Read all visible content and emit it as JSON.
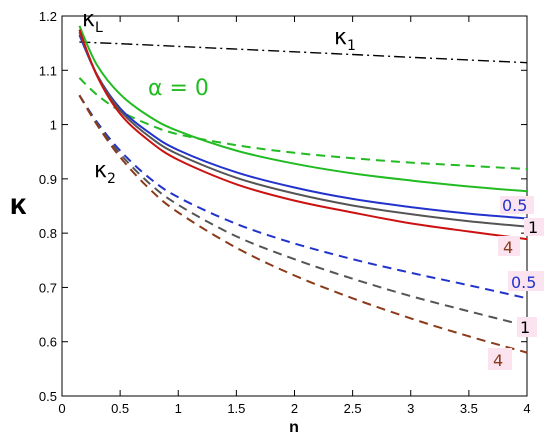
{
  "chart_data": {
    "type": "line",
    "xlabel": "n",
    "ylabel": "κ",
    "xlim": [
      0,
      4
    ],
    "ylim": [
      0.5,
      1.2
    ],
    "xticks": [
      "0",
      "0.5",
      "1",
      "1.5",
      "2",
      "2.5",
      "3",
      "3.5",
      "4"
    ],
    "yticks": [
      "0.5",
      "0.6",
      "0.7",
      "0.8",
      "0.9",
      "1",
      "1.1",
      "1.2"
    ],
    "grid": false,
    "series": [
      {
        "label": "κ1",
        "color": "#000000",
        "dash": "dashdot",
        "x": [
          0.15,
          0.5,
          1.0,
          1.5,
          2.0,
          2.5,
          3.0,
          3.5,
          4.0
        ],
        "y": [
          1.152,
          1.149,
          1.144,
          1.139,
          1.134,
          1.129,
          1.124,
          1.119,
          1.114
        ]
      },
      {
        "label": "α = 0",
        "color": "#22bb22",
        "dash": "solid",
        "x": [
          0.15,
          0.3,
          0.5,
          0.75,
          1.0,
          1.5,
          2.0,
          2.5,
          3.0,
          3.5,
          4.0
        ],
        "y": [
          1.182,
          1.11,
          1.056,
          1.015,
          0.988,
          0.952,
          0.928,
          0.91,
          0.897,
          0.886,
          0.877
        ]
      },
      {
        "label": "α = 0 (κ2)",
        "color": "#22bb22",
        "dash": "dashed",
        "x": [
          0.15,
          0.3,
          0.5,
          0.75,
          1.0,
          1.5,
          2.0,
          2.5,
          3.0,
          3.5,
          4.0
        ],
        "y": [
          1.086,
          1.055,
          1.025,
          1.0,
          0.982,
          0.962,
          0.948,
          0.938,
          0.93,
          0.924,
          0.918
        ]
      },
      {
        "label": "0.5",
        "color": "#2233cc",
        "dash": "solid",
        "x": [
          0.15,
          0.3,
          0.5,
          0.75,
          1.0,
          1.5,
          2.0,
          2.5,
          3.0,
          3.5,
          4.0
        ],
        "y": [
          1.165,
          1.092,
          1.03,
          0.985,
          0.953,
          0.912,
          0.884,
          0.863,
          0.848,
          0.836,
          0.827
        ]
      },
      {
        "label": "1",
        "color": "#555555",
        "dash": "solid",
        "x": [
          0.15,
          0.3,
          0.5,
          0.75,
          1.0,
          1.5,
          2.0,
          2.5,
          3.0,
          3.5,
          4.0
        ],
        "y": [
          1.17,
          1.092,
          1.026,
          0.978,
          0.945,
          0.902,
          0.873,
          0.851,
          0.835,
          0.822,
          0.812
        ]
      },
      {
        "label": "4",
        "color": "#cc1111",
        "dash": "solid",
        "x": [
          0.15,
          0.3,
          0.5,
          0.75,
          1.0,
          1.5,
          2.0,
          2.5,
          3.0,
          3.5,
          4.0
        ],
        "y": [
          1.175,
          1.09,
          1.02,
          0.97,
          0.935,
          0.89,
          0.86,
          0.838,
          0.818,
          0.803,
          0.789
        ]
      },
      {
        "label": "0.5 (κ2)",
        "color": "#2233cc",
        "dash": "dashed",
        "x": [
          0.15,
          0.3,
          0.5,
          0.75,
          1.0,
          1.5,
          2.0,
          2.5,
          3.0,
          3.5,
          4.0
        ],
        "y": [
          1.054,
          1.005,
          0.952,
          0.902,
          0.866,
          0.817,
          0.781,
          0.752,
          0.727,
          0.704,
          0.68
        ]
      },
      {
        "label": "1 (κ2)",
        "color": "#555555",
        "dash": "dashed",
        "x": [
          0.15,
          0.3,
          0.5,
          0.75,
          1.0,
          1.5,
          2.0,
          2.5,
          3.0,
          3.5,
          4.0
        ],
        "y": [
          1.054,
          1.002,
          0.946,
          0.892,
          0.852,
          0.794,
          0.752,
          0.716,
          0.684,
          0.656,
          0.629
        ]
      },
      {
        "label": "4 (κ2)",
        "color": "#8b3a1a",
        "dash": "dashed",
        "x": [
          0.15,
          0.3,
          0.5,
          0.75,
          1.0,
          1.5,
          2.0,
          2.5,
          3.0,
          3.5,
          4.0
        ],
        "y": [
          1.054,
          1.0,
          0.94,
          0.882,
          0.838,
          0.773,
          0.722,
          0.68,
          0.643,
          0.61,
          0.58
        ]
      }
    ],
    "annotations": [
      {
        "text": "κ",
        "sub": "L",
        "color": "#000000"
      },
      {
        "text": "κ",
        "sub": "1",
        "color": "#000000"
      },
      {
        "text": "κ",
        "sub": "2",
        "color": "#000000"
      },
      {
        "text": "α = 0",
        "color": "#22bb22"
      },
      {
        "text": "0.5",
        "color": "#2233cc"
      },
      {
        "text": "1",
        "color": "#000000"
      },
      {
        "text": "4",
        "color": "#8b3a1a"
      },
      {
        "text": "0.5",
        "color": "#2233cc"
      },
      {
        "text": "1",
        "color": "#000000"
      },
      {
        "text": "4",
        "color": "#8b3a1a"
      }
    ]
  }
}
